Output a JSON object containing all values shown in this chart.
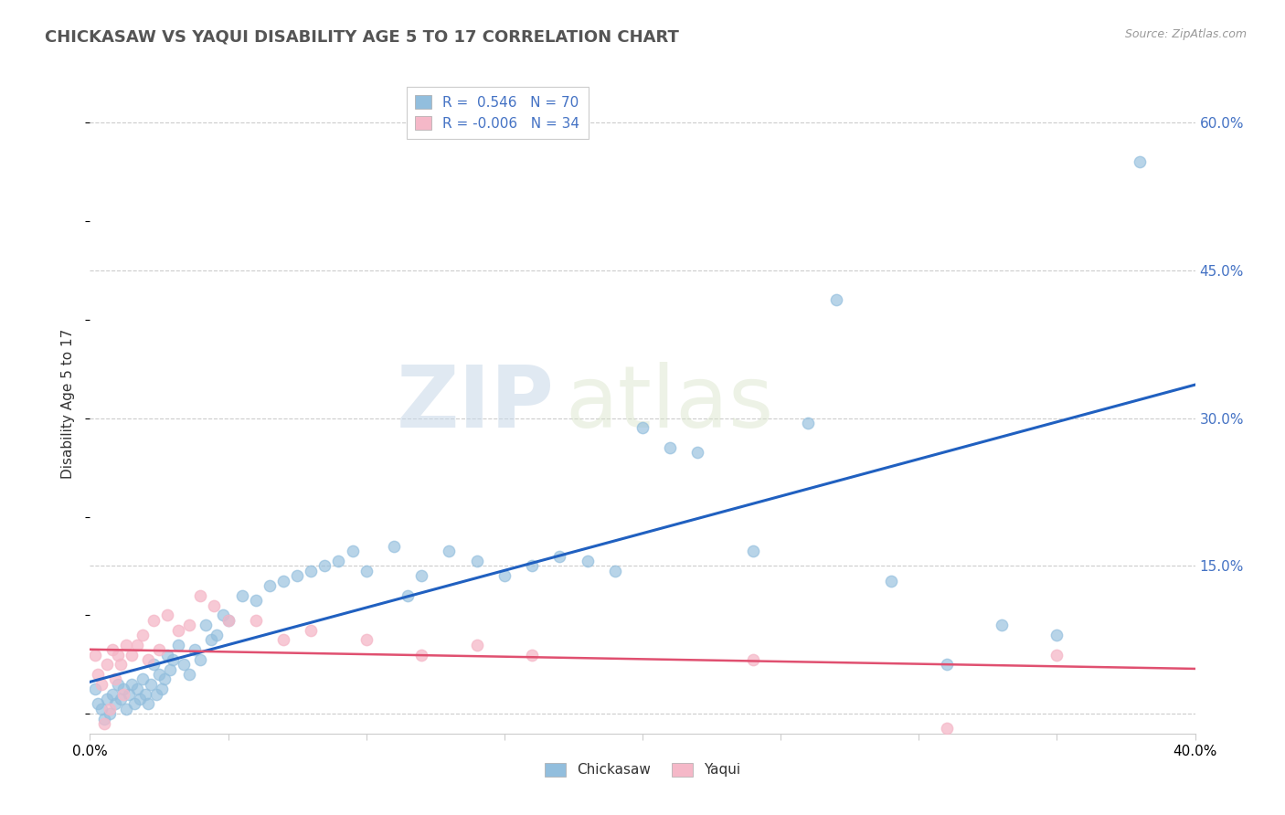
{
  "title": "CHICKASAW VS YAQUI DISABILITY AGE 5 TO 17 CORRELATION CHART",
  "source_text": "Source: ZipAtlas.com",
  "ylabel": "Disability Age 5 to 17",
  "xlim": [
    0.0,
    0.4
  ],
  "ylim": [
    -0.02,
    0.65
  ],
  "yticks_right": [
    0.0,
    0.15,
    0.3,
    0.45,
    0.6
  ],
  "yticklabels_right": [
    "",
    "15.0%",
    "30.0%",
    "45.0%",
    "60.0%"
  ],
  "legend_r1": "R =  0.546   N = 70",
  "legend_r2": "R = -0.006   N = 34",
  "chickasaw_color": "#92bedd",
  "yaqui_color": "#f5b8c8",
  "trend_chickasaw_color": "#2060c0",
  "trend_yaqui_color": "#e05070",
  "watermark_zip": "ZIP",
  "watermark_atlas": "atlas",
  "chickasaw_x": [
    0.002,
    0.003,
    0.004,
    0.005,
    0.006,
    0.007,
    0.008,
    0.009,
    0.01,
    0.011,
    0.012,
    0.013,
    0.014,
    0.015,
    0.016,
    0.017,
    0.018,
    0.019,
    0.02,
    0.021,
    0.022,
    0.023,
    0.024,
    0.025,
    0.026,
    0.027,
    0.028,
    0.029,
    0.03,
    0.032,
    0.034,
    0.036,
    0.038,
    0.04,
    0.042,
    0.044,
    0.046,
    0.048,
    0.05,
    0.055,
    0.06,
    0.065,
    0.07,
    0.075,
    0.08,
    0.085,
    0.09,
    0.095,
    0.1,
    0.11,
    0.115,
    0.12,
    0.13,
    0.14,
    0.15,
    0.16,
    0.17,
    0.18,
    0.19,
    0.2,
    0.21,
    0.22,
    0.24,
    0.26,
    0.27,
    0.29,
    0.31,
    0.33,
    0.35,
    0.38
  ],
  "chickasaw_y": [
    0.025,
    0.01,
    0.005,
    -0.005,
    0.015,
    0.0,
    0.02,
    0.01,
    0.03,
    0.015,
    0.025,
    0.005,
    0.02,
    0.03,
    0.01,
    0.025,
    0.015,
    0.035,
    0.02,
    0.01,
    0.03,
    0.05,
    0.02,
    0.04,
    0.025,
    0.035,
    0.06,
    0.045,
    0.055,
    0.07,
    0.05,
    0.04,
    0.065,
    0.055,
    0.09,
    0.075,
    0.08,
    0.1,
    0.095,
    0.12,
    0.115,
    0.13,
    0.135,
    0.14,
    0.145,
    0.15,
    0.155,
    0.165,
    0.145,
    0.17,
    0.12,
    0.14,
    0.165,
    0.155,
    0.14,
    0.15,
    0.16,
    0.155,
    0.145,
    0.29,
    0.27,
    0.265,
    0.165,
    0.295,
    0.42,
    0.135,
    0.05,
    0.09,
    0.08,
    0.56
  ],
  "yaqui_x": [
    0.002,
    0.003,
    0.004,
    0.005,
    0.006,
    0.007,
    0.008,
    0.009,
    0.01,
    0.011,
    0.012,
    0.013,
    0.015,
    0.017,
    0.019,
    0.021,
    0.023,
    0.025,
    0.028,
    0.032,
    0.036,
    0.04,
    0.045,
    0.05,
    0.06,
    0.07,
    0.08,
    0.1,
    0.12,
    0.14,
    0.16,
    0.24,
    0.31,
    0.35
  ],
  "yaqui_y": [
    0.06,
    0.04,
    0.03,
    -0.01,
    0.05,
    0.005,
    0.065,
    0.035,
    0.06,
    0.05,
    0.02,
    0.07,
    0.06,
    0.07,
    0.08,
    0.055,
    0.095,
    0.065,
    0.1,
    0.085,
    0.09,
    0.12,
    0.11,
    0.095,
    0.095,
    0.075,
    0.085,
    0.075,
    0.06,
    0.07,
    0.06,
    0.055,
    -0.015,
    0.06
  ]
}
